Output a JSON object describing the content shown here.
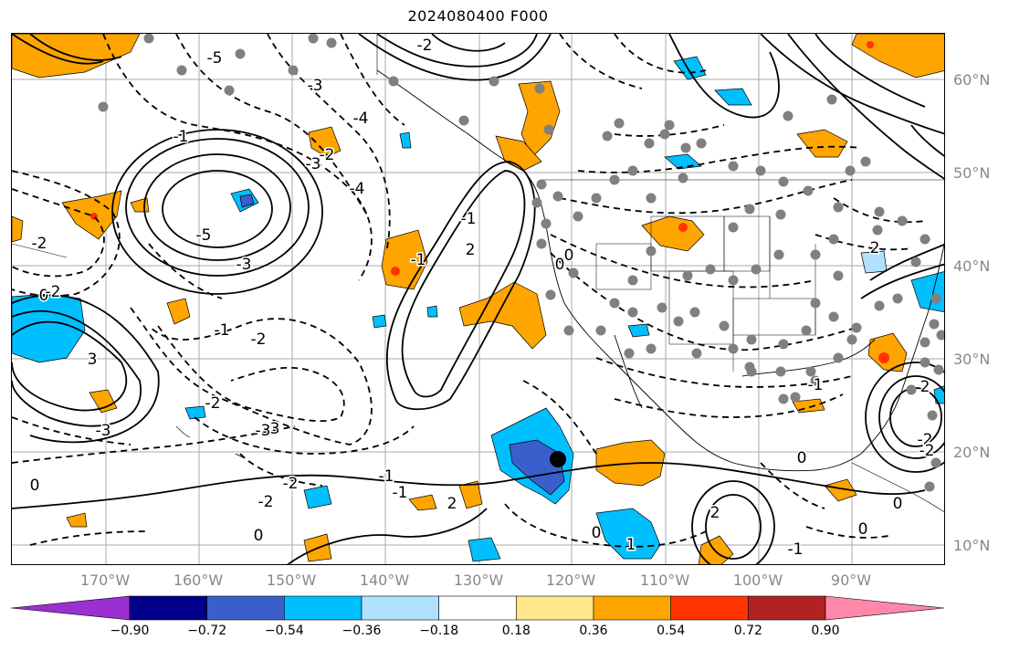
{
  "title": "2024080400 F000",
  "lat_labels": [
    "60°N",
    "50°N",
    "40°N",
    "30°N",
    "20°N",
    "10°N"
  ],
  "lon_labels": [
    "170°W",
    "160°W",
    "150°W",
    "140°W",
    "130°W",
    "120°W",
    "110°W",
    "100°W",
    "90°W"
  ],
  "colorbar": {
    "ticks": [
      "−0.90",
      "−0.72",
      "−0.54",
      "−0.36",
      "−0.18",
      "0.18",
      "0.36",
      "0.54",
      "0.72",
      "0.90"
    ],
    "colors": [
      "#9b30d0",
      "#00008b",
      "#3a5fcd",
      "#00bfff",
      "#b0e2ff",
      "#ffffff",
      "#ffe88a",
      "#ffa500",
      "#ff3300",
      "#b22222",
      "#ff88aa"
    ]
  },
  "contour_labels": {
    "c1": "-5",
    "c2": "-3",
    "c3": "-4",
    "c4": "-3",
    "c5": "-2",
    "c6": "-1",
    "c7": "-4",
    "c8": "-5",
    "c9": "-3",
    "c10": "-1",
    "c11": "0",
    "c12": "2",
    "c13": "3",
    "c14": "0",
    "c15": "-1",
    "c16": "-2",
    "c17": "-3",
    "c18": "-2",
    "c19": "0",
    "c20": "-1",
    "c21": "-2",
    "c22": "0",
    "c23": "-2",
    "c24": "-1",
    "c25": "2",
    "c26": "-2",
    "c27": "-1",
    "c28": "-2",
    "c29": "-3",
    "c30": "2",
    "c31": "2",
    "c32": "-2",
    "c33": "0",
    "c34": "1",
    "c35": "-1",
    "c36": "0",
    "c37": "-1",
    "c38": "0",
    "c39": "0",
    "c40": "-2",
    "c41": "-3",
    "c42": "2",
    "c43": "0",
    "c44": "-2"
  },
  "icons": {
    "storm_center": "storm-center-marker",
    "station": "observation-station-dot"
  }
}
